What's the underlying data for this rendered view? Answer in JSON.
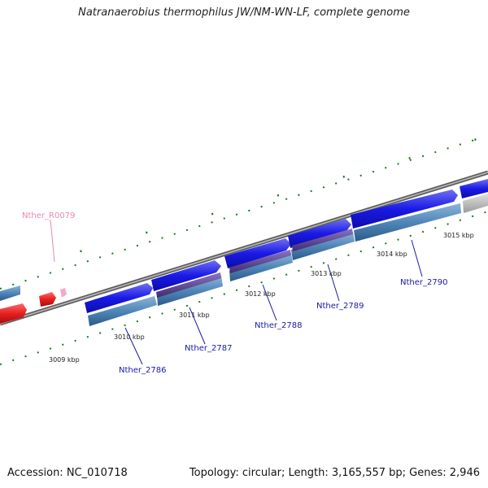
{
  "title": "Natranaerobius thermophilus JW/NM-WN-LF, complete genome",
  "footer": {
    "accession": "Accession: NC_010718",
    "topology": "Topology: circular; Length: 3,165,557 bp; Genes: 2,946"
  },
  "scale_labels": [
    "3009 kbp",
    "3010 kbp",
    "3011 kbp",
    "3012 kbp",
    "3013 kbp",
    "3014 kbp",
    "3015 kbp"
  ],
  "gene_labels": [
    "Nther_R0079",
    "Nther_2786",
    "Nther_2787",
    "Nther_2788",
    "Nther_2789",
    "Nther_2790"
  ],
  "colors": {
    "cds": "#1a1ae6",
    "cds_light": "#6f6ff0",
    "gene_bar": "#4f86b8",
    "gene_bar_light": "#8cb4d8",
    "cds_rev": "#5a3f8e",
    "rrna": "#e62020",
    "trna": "#f0a0c8",
    "backbone": "#808080",
    "tick": "#1a7a1a",
    "label": "#1a1aa8",
    "rrna_label": "#e887b2",
    "grey_bar": "#b8b8b8"
  }
}
